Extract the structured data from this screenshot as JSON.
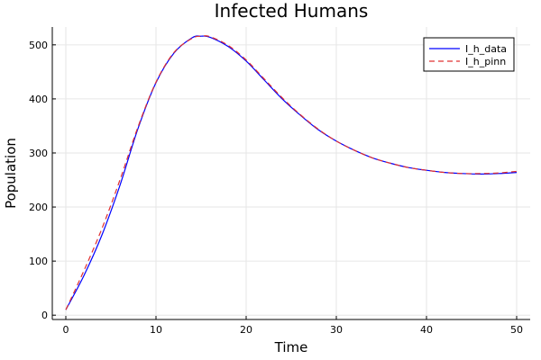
{
  "chart_data": {
    "type": "line",
    "title": "Infected Humans",
    "xlabel": "Time",
    "ylabel": "Population",
    "xlim": [
      -1.5,
      51.5
    ],
    "ylim": [
      -8,
      533
    ],
    "xticks": [
      0,
      10,
      20,
      30,
      40,
      50
    ],
    "yticks": [
      0,
      100,
      200,
      300,
      400,
      500
    ],
    "grid": true,
    "legend_position": "top-right",
    "series": [
      {
        "name": "I_h_data",
        "color": "#0000ff",
        "style": "solid",
        "x": [
          0,
          2,
          4,
          6,
          8,
          10,
          12,
          14,
          15,
          16,
          18,
          20,
          22,
          24,
          26,
          28,
          30,
          32,
          34,
          36,
          38,
          40,
          42,
          44,
          46,
          48,
          50
        ],
        "y": [
          10,
          73,
          148,
          240,
          345,
          430,
          485,
          513,
          516,
          514,
          497,
          470,
          435,
          400,
          370,
          343,
          322,
          305,
          291,
          281,
          273,
          268,
          264,
          262,
          261,
          262,
          264
        ]
      },
      {
        "name": "I_h_pinn",
        "color": "#e03030",
        "style": "dashed",
        "x": [
          0,
          2,
          4,
          6,
          8,
          10,
          12,
          14,
          15,
          16,
          18,
          20,
          22,
          24,
          26,
          28,
          30,
          32,
          34,
          36,
          38,
          40,
          42,
          44,
          46,
          48,
          50
        ],
        "y": [
          10,
          82,
          160,
          250,
          348,
          431,
          486,
          512,
          516,
          515,
          499,
          472,
          437,
          402,
          371,
          344,
          322,
          305,
          291,
          281,
          273,
          268,
          264,
          262,
          262,
          263,
          266
        ]
      }
    ]
  }
}
